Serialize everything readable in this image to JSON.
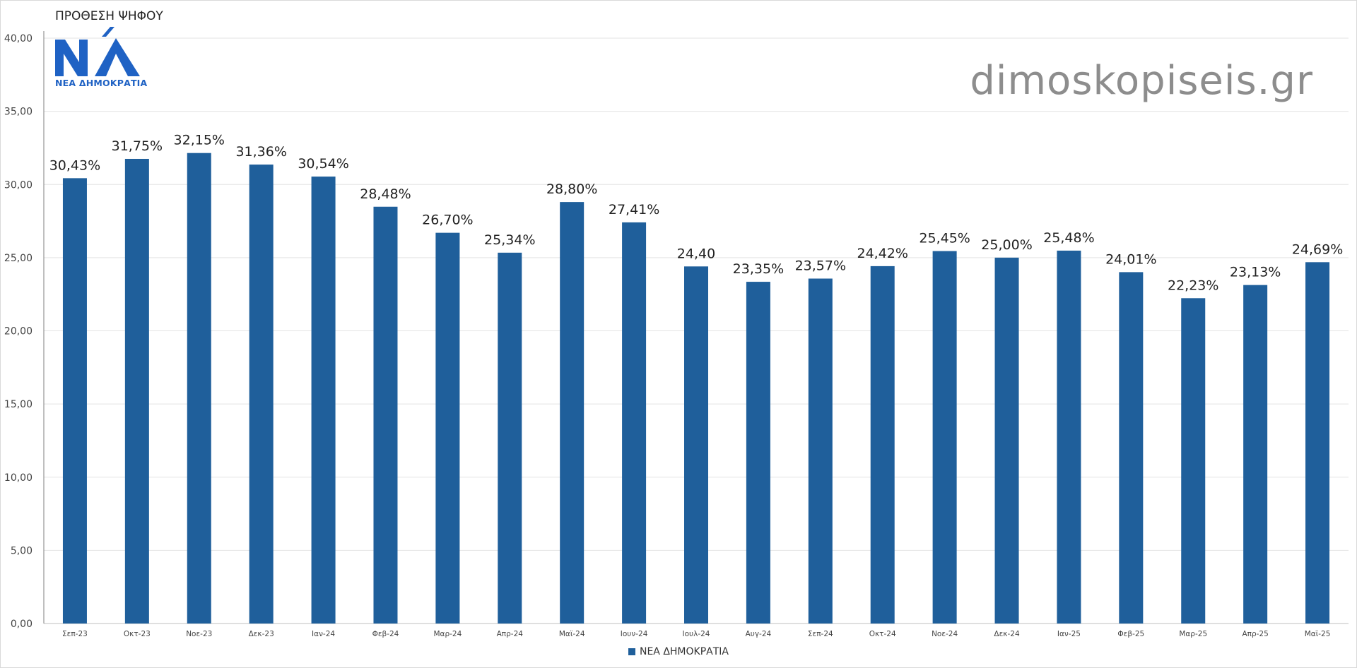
{
  "header": {
    "title": "ΠΡΟΘΕΣΗ ΨΗΦΟΥ",
    "logo_text": "ΝΕΑ ΔΗΜΟΚΡΑΤΙΑ",
    "watermark": "dimoskopiseis.gr"
  },
  "colors": {
    "bar": "#1f5f9b",
    "logo": "#1f62c4",
    "grid": "#e3e3e3"
  },
  "chart_data": {
    "type": "bar",
    "title": "ΠΡΟΘΕΣΗ ΨΗΦΟΥ",
    "xlabel": "",
    "ylabel": "",
    "ylim": [
      0,
      40
    ],
    "yticks": [
      "0,00",
      "5,00",
      "10,00",
      "15,00",
      "20,00",
      "25,00",
      "30,00",
      "35,00",
      "40,00"
    ],
    "grid": true,
    "legend_position": "bottom",
    "categories": [
      "Σεπ-23",
      "Οκτ-23",
      "Νοε-23",
      "Δεκ-23",
      "Ιαν-24",
      "Φεβ-24",
      "Μαρ-24",
      "Απρ-24",
      "Μαϊ-24",
      "Ιουν-24",
      "Ιουλ-24",
      "Αυγ-24",
      "Σεπ-24",
      "Οκτ-24",
      "Νοε-24",
      "Δεκ-24",
      "Ιαν-25",
      "Φεβ-25",
      "Μαρ-25",
      "Απρ-25",
      "Μαϊ-25"
    ],
    "series": [
      {
        "name": "ΝΕΑ ΔΗΜΟΚΡΑΤΙΑ",
        "values": [
          30.43,
          31.75,
          32.15,
          31.36,
          30.54,
          28.48,
          26.7,
          25.34,
          28.8,
          27.41,
          24.4,
          23.35,
          23.57,
          24.42,
          25.45,
          25.0,
          25.48,
          24.01,
          22.23,
          23.13,
          24.69
        ],
        "data_labels": [
          "30,43%",
          "31,75%",
          "32,15%",
          "31,36%",
          "30,54%",
          "28,48%",
          "26,70%",
          "25,34%",
          "28,80%",
          "27,41%",
          "24,40",
          "23,35%",
          "23,57%",
          "24,42%",
          "25,45%",
          "25,00%",
          "25,48%",
          "24,01%",
          "22,23%",
          "23,13%",
          "24,69%"
        ]
      }
    ]
  }
}
